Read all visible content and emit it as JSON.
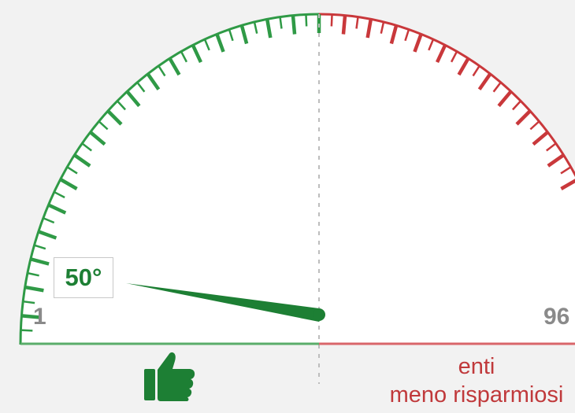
{
  "gauge": {
    "min_label": "1",
    "max_label": "96",
    "min": 1,
    "max": 96,
    "midpoint": 48.5,
    "value": 50,
    "value_label": "50°",
    "left_color": "#2f9a46",
    "right_color": "#c9383b",
    "needle_color": "#1d7f34",
    "good_side_icon": "thumbs-up-icon",
    "right_caption_line1": "enti",
    "right_caption_line2": "meno risparmiosi"
  }
}
